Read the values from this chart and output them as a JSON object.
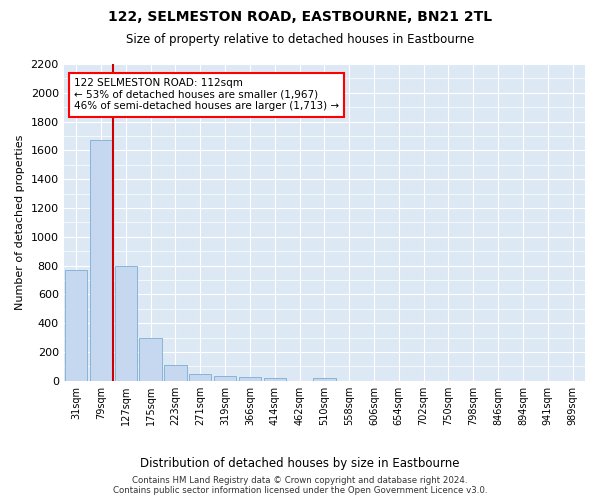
{
  "title": "122, SELMESTON ROAD, EASTBOURNE, BN21 2TL",
  "subtitle": "Size of property relative to detached houses in Eastbourne",
  "xlabel": "Distribution of detached houses by size in Eastbourne",
  "ylabel": "Number of detached properties",
  "bar_color": "#c5d8f0",
  "bar_edge_color": "#7aadd4",
  "highlight_color": "#cc0000",
  "background_color": "#dde8f5",
  "categories": [
    "31sqm",
    "79sqm",
    "127sqm",
    "175sqm",
    "223sqm",
    "271sqm",
    "319sqm",
    "366sqm",
    "414sqm",
    "462sqm",
    "510sqm",
    "558sqm",
    "606sqm",
    "654sqm",
    "702sqm",
    "750sqm",
    "798sqm",
    "846sqm",
    "894sqm",
    "941sqm",
    "989sqm"
  ],
  "values": [
    770,
    1670,
    800,
    300,
    110,
    45,
    30,
    25,
    20,
    0,
    20,
    0,
    0,
    0,
    0,
    0,
    0,
    0,
    0,
    0,
    0
  ],
  "ylim": [
    0,
    2200
  ],
  "yticks": [
    0,
    200,
    400,
    600,
    800,
    1000,
    1200,
    1400,
    1600,
    1800,
    2000,
    2200
  ],
  "annotation_text": "122 SELMESTON ROAD: 112sqm\n← 53% of detached houses are smaller (1,967)\n46% of semi-detached houses are larger (1,713) →",
  "vline_x": 1.5,
  "footer_line1": "Contains HM Land Registry data © Crown copyright and database right 2024.",
  "footer_line2": "Contains public sector information licensed under the Open Government Licence v3.0."
}
